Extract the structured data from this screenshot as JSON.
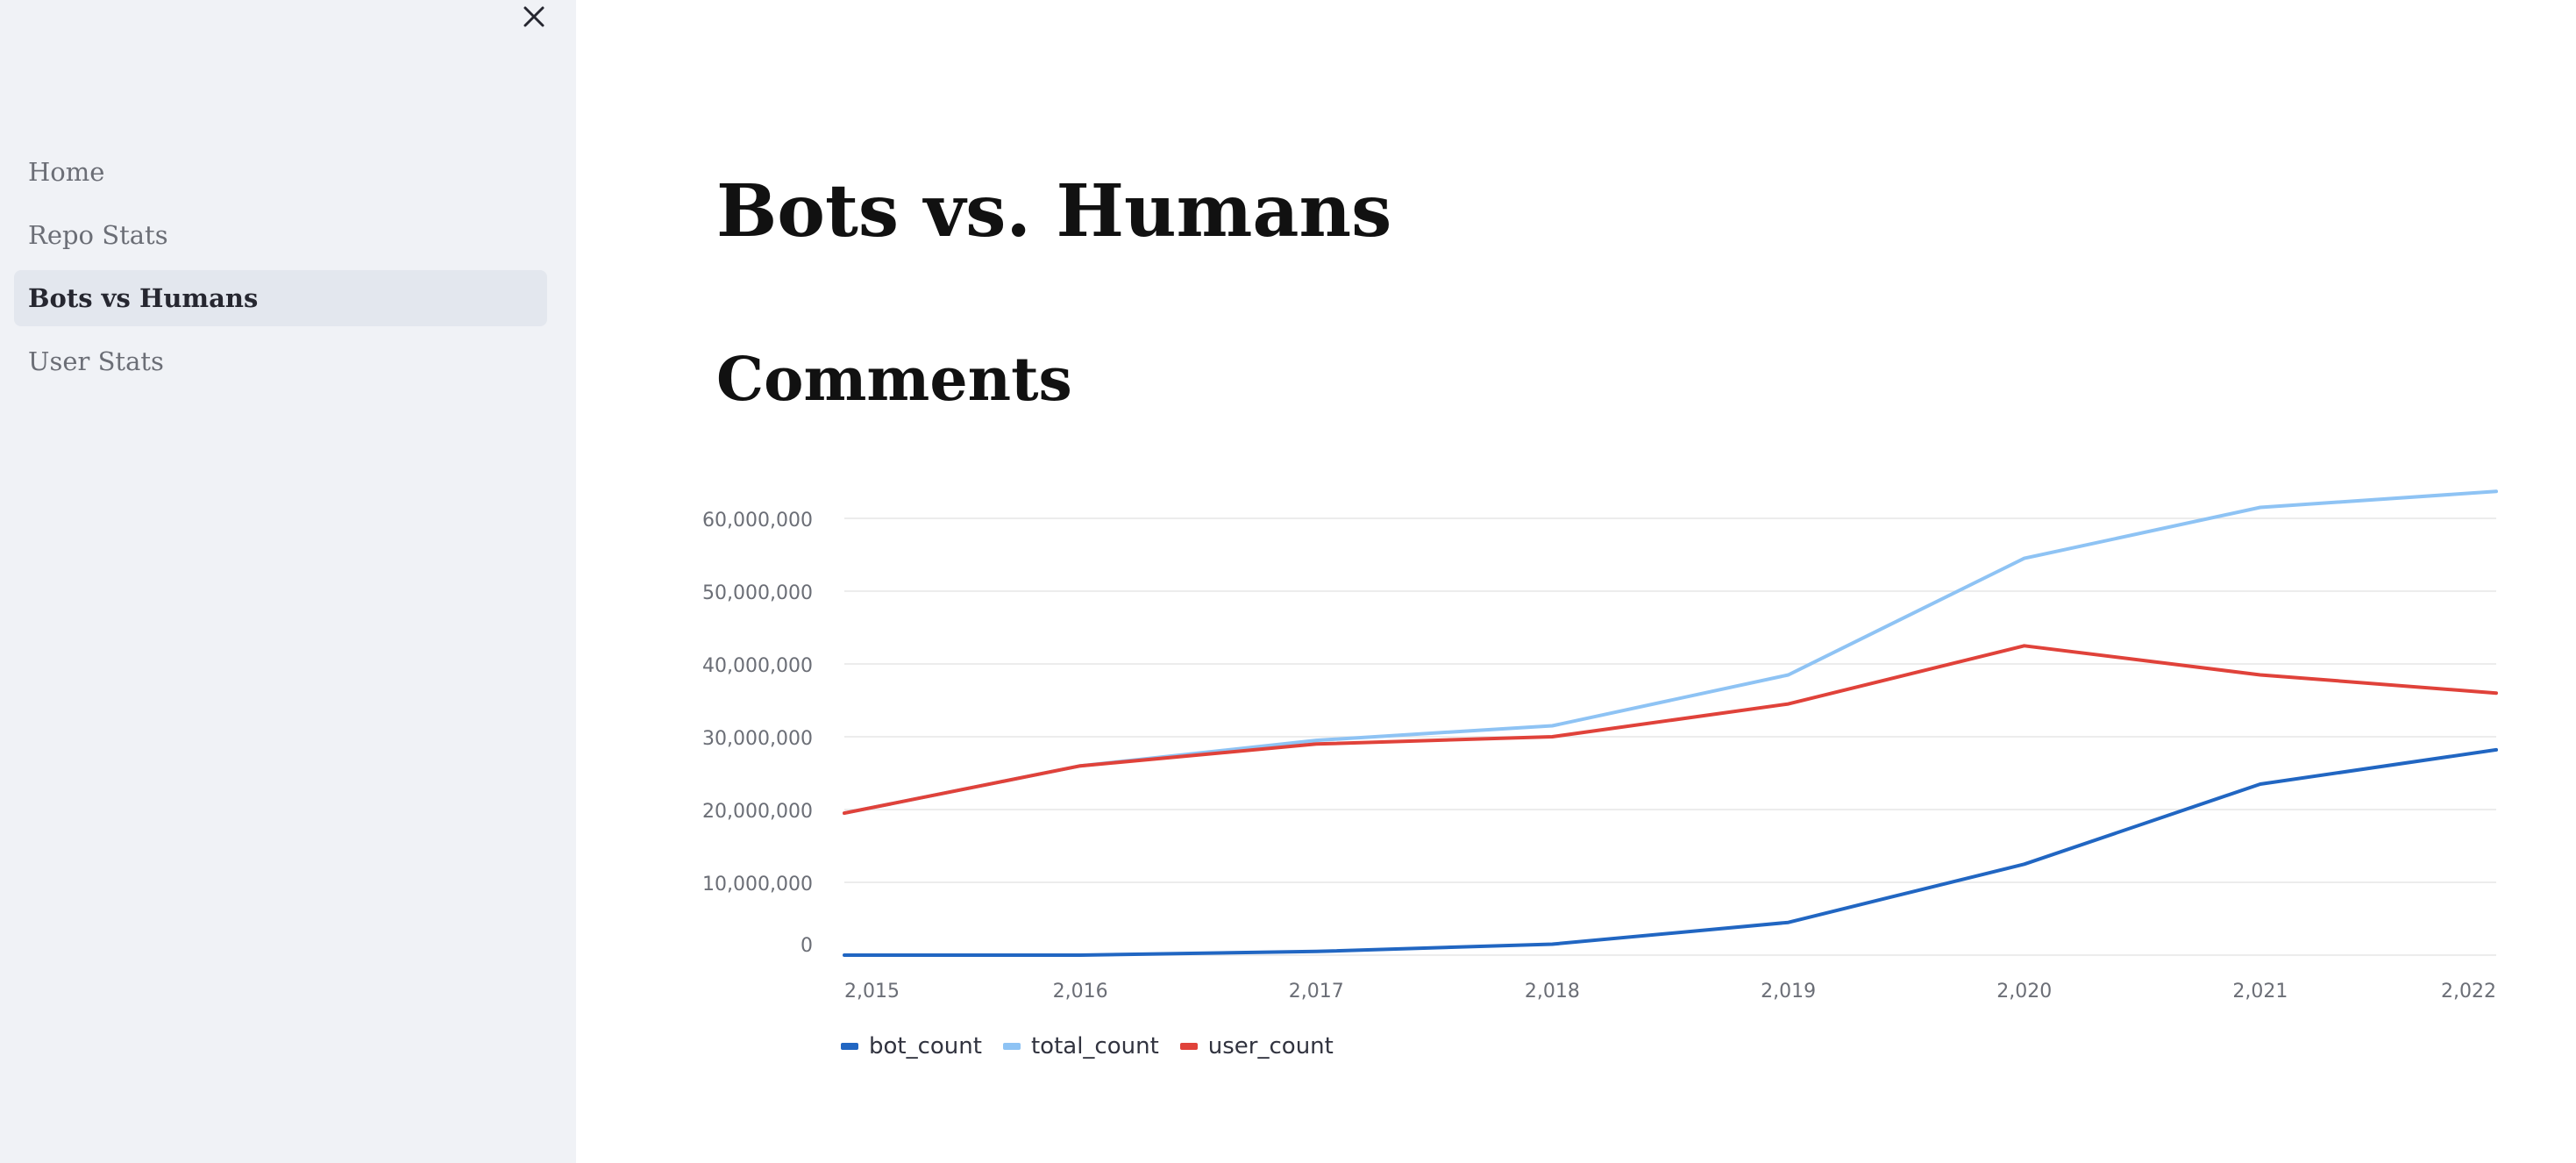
{
  "sidebar": {
    "close_icon": "close-icon",
    "items": [
      {
        "label": "Home",
        "active": false
      },
      {
        "label": "Repo Stats",
        "active": false
      },
      {
        "label": "Bots vs Humans",
        "active": true
      },
      {
        "label": "User Stats",
        "active": false
      }
    ]
  },
  "main": {
    "title": "Bots vs. Humans",
    "section_title": "Comments"
  },
  "colors": {
    "bot_count": "#2166c2",
    "total_count": "#8ec3f4",
    "user_count": "#e0423a",
    "grid": "#e6e6e6",
    "tick": "#6b6e76"
  },
  "chart_data": {
    "type": "line",
    "x": [
      2015,
      2016,
      2017,
      2018,
      2019,
      2020,
      2021,
      2022
    ],
    "x_tick_labels": [
      "2,015",
      "2,016",
      "2,017",
      "2,018",
      "2,019",
      "2,020",
      "2,021",
      "2,022"
    ],
    "y_tick_values": [
      0,
      10000000,
      20000000,
      30000000,
      40000000,
      50000000,
      60000000
    ],
    "y_tick_labels": [
      "0",
      "10,000,000",
      "20,000,000",
      "30,000,000",
      "40,000,000",
      "50,000,000",
      "60,000,000"
    ],
    "ylim": [
      0,
      64000000
    ],
    "grid": true,
    "legend": "bottom-left",
    "series": [
      {
        "name": "bot_count",
        "values": [
          0,
          0,
          500000,
          1500000,
          4500000,
          12500000,
          23500000,
          28200000
        ]
      },
      {
        "name": "total_count",
        "values": [
          19500000,
          26000000,
          29500000,
          31500000,
          38500000,
          54500000,
          61500000,
          63700000
        ]
      },
      {
        "name": "user_count",
        "values": [
          19500000,
          26000000,
          29000000,
          30000000,
          34500000,
          42500000,
          38500000,
          36000000
        ]
      }
    ]
  }
}
